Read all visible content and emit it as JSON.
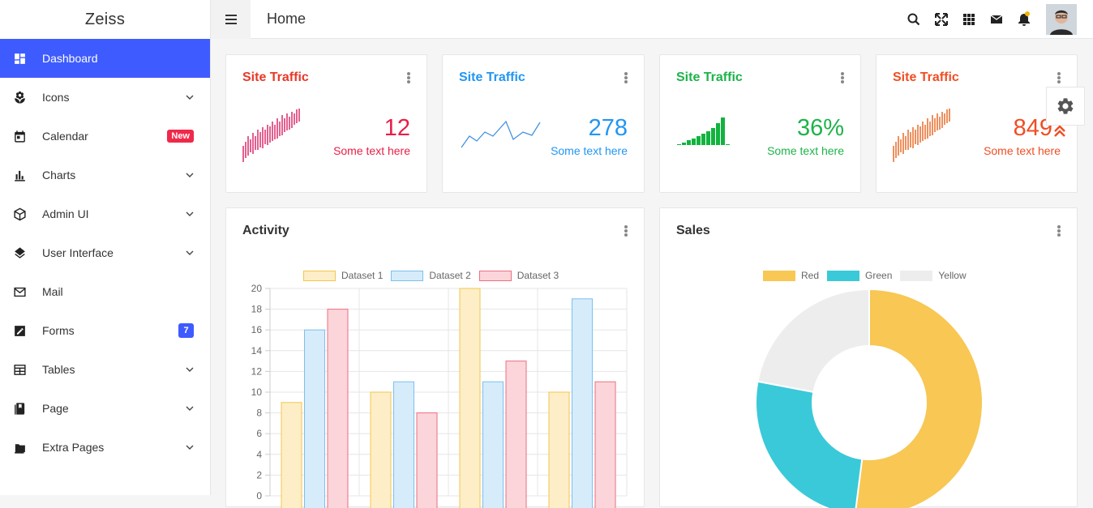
{
  "brand": "Zeiss",
  "header": {
    "title": "Home"
  },
  "sidebar": {
    "items": [
      {
        "label": "Dashboard",
        "icon": "dashboard-icon",
        "active": true
      },
      {
        "label": "Icons",
        "icon": "flower-icon",
        "chevron": true
      },
      {
        "label": "Calendar",
        "icon": "calendar-icon",
        "badge": "New"
      },
      {
        "label": "Charts",
        "icon": "bar-chart-icon",
        "chevron": true
      },
      {
        "label": "Admin UI",
        "icon": "cube-icon",
        "chevron": true
      },
      {
        "label": "User Interface",
        "icon": "layers-icon",
        "chevron": true
      },
      {
        "label": "Mail",
        "icon": "mail-icon"
      },
      {
        "label": "Forms",
        "icon": "edit-icon",
        "badge": "7"
      },
      {
        "label": "Tables",
        "icon": "table-icon",
        "chevron": true
      },
      {
        "label": "Page",
        "icon": "book-icon",
        "chevron": true
      },
      {
        "label": "Extra Pages",
        "icon": "folder-icon",
        "chevron": true
      }
    ]
  },
  "stats": [
    {
      "title": "Site Traffic",
      "value": "12",
      "sub": "Some text here",
      "color": "#e8392a",
      "value_color": "#e91e45"
    },
    {
      "title": "Site Traffic",
      "value": "278",
      "sub": "Some text here",
      "color": "#2196f3",
      "value_color": "#2196f3"
    },
    {
      "title": "Site Traffic",
      "value": "36%",
      "sub": "Some text here",
      "color": "#1db34a",
      "value_color": "#1db34a"
    },
    {
      "title": "Site Traffic",
      "value": "849",
      "sub": "Some text here",
      "color": "#f04e23",
      "value_color": "#f04e23"
    }
  ],
  "activity": {
    "title": "Activity",
    "chart_data": {
      "type": "bar",
      "categories": [
        "",
        "",
        "",
        ""
      ],
      "series": [
        {
          "name": "Dataset 1",
          "values": [
            9,
            10,
            20,
            10
          ],
          "fill": "#fdeec7",
          "stroke": "#f5c54d"
        },
        {
          "name": "Dataset 2",
          "values": [
            16,
            11,
            11,
            19
          ],
          "fill": "#d6ecfb",
          "stroke": "#7cc0ee"
        },
        {
          "name": "Dataset 3",
          "values": [
            18,
            8,
            13,
            11
          ],
          "fill": "#fbd5da",
          "stroke": "#ee6f82"
        }
      ],
      "ylim": [
        0,
        20
      ],
      "yticks": [
        "20",
        "18",
        "16",
        "14",
        "12",
        "10",
        "8",
        "6",
        "4",
        "2",
        "0"
      ],
      "grid": true,
      "legend": "top"
    }
  },
  "sales": {
    "title": "Sales",
    "chart_data": {
      "type": "pie",
      "labels": [
        "Red",
        "Green",
        "Yellow"
      ],
      "values": [
        52,
        26,
        22
      ],
      "colors": [
        "#f8c754",
        "#3ac9d8",
        "#ededed"
      ],
      "legend": "top"
    }
  }
}
